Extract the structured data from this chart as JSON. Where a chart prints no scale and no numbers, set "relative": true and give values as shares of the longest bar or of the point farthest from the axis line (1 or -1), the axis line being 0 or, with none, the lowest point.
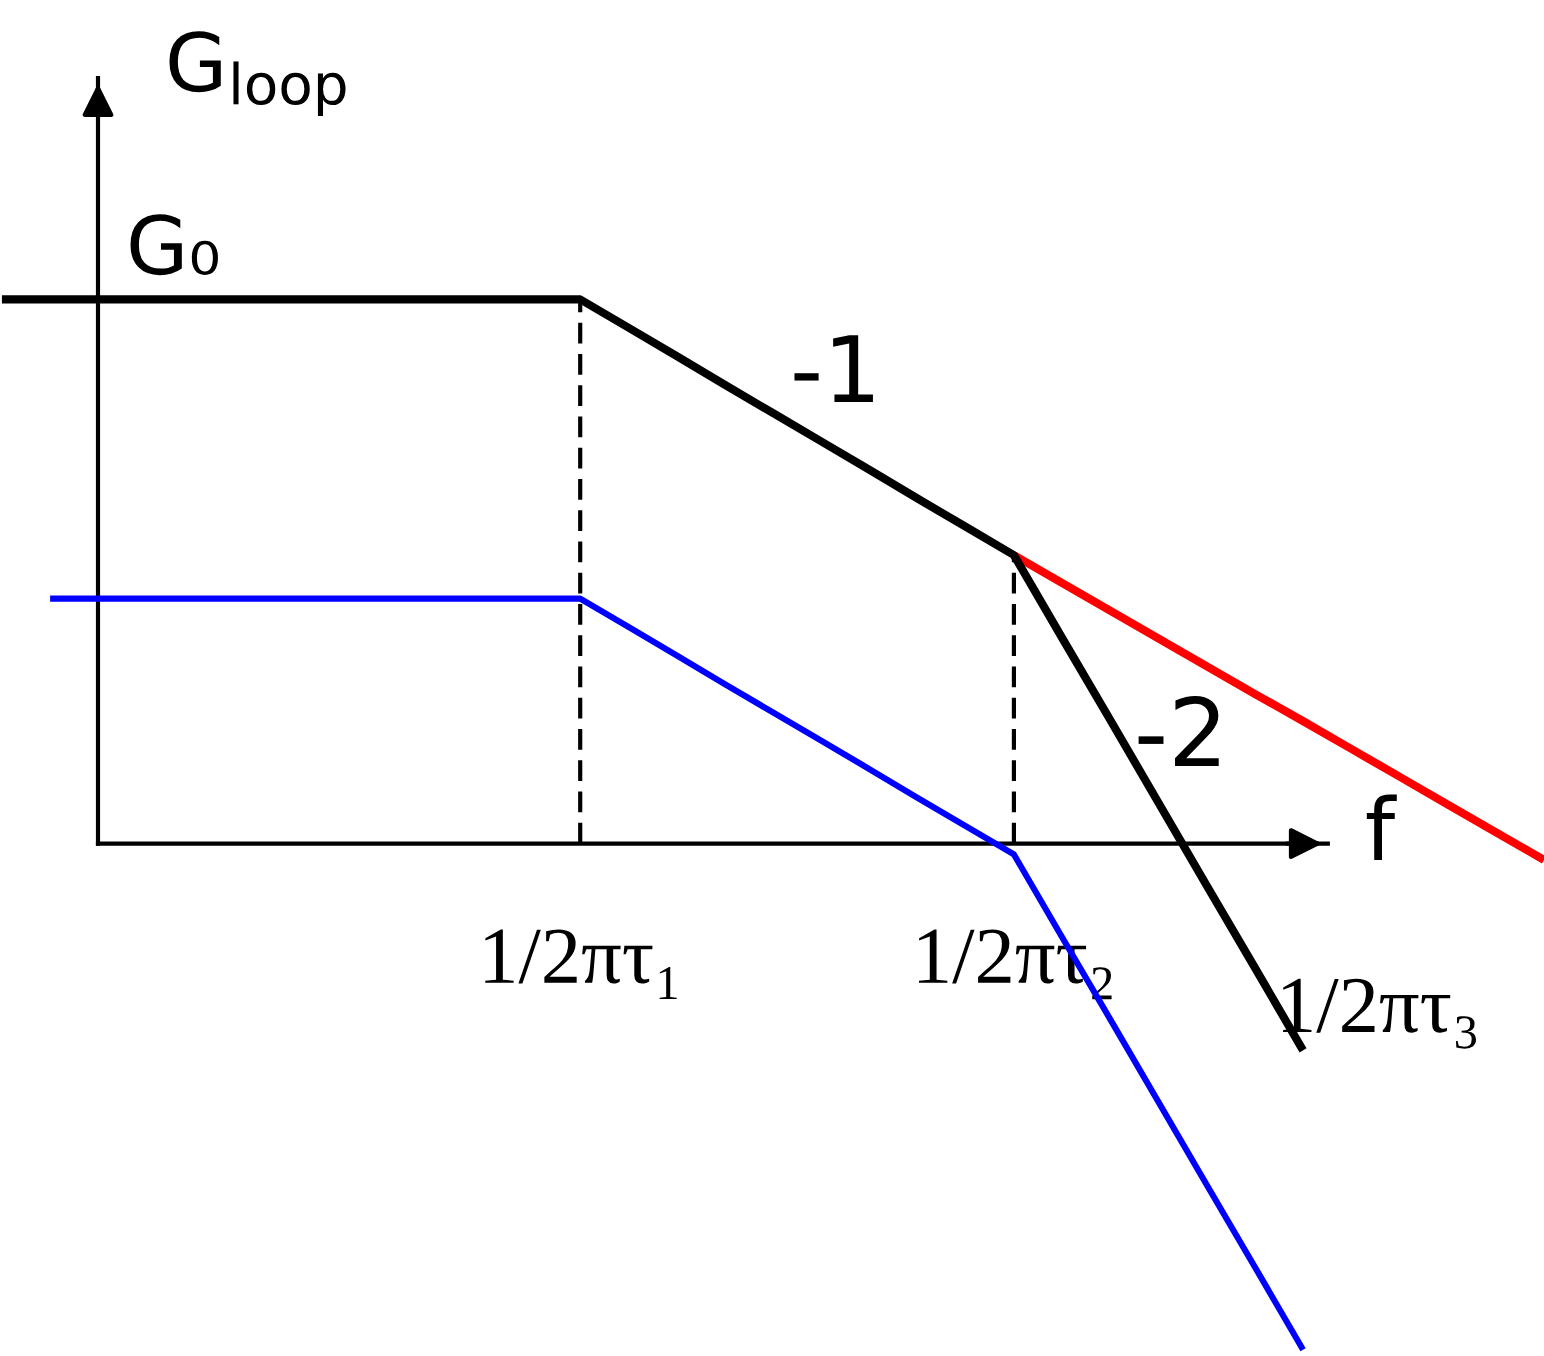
{
  "chart_data": {
    "type": "line",
    "relative": true,
    "xlabel": "f",
    "ylabel": "G$_{loop}$",
    "categories": [
      null,
      null,
      null,
      null,
      null,
      null,
      null,
      null,
      null,
      null,
      null,
      null,
      "1/2πτ₁",
      null,
      null,
      null,
      null,
      null,
      null,
      null,
      null,
      "1/2πτ₂",
      null,
      null,
      null,
      null,
      null,
      null,
      null,
      null,
      null,
      null,
      null
    ],
    "series": [
      {
        "color": "#ff0000",
        "values": [
          null,
          null,
          null,
          null,
          null,
          null,
          null,
          null,
          null,
          null,
          null,
          null,
          null,
          null,
          null,
          null,
          null,
          null,
          null,
          null,
          null,
          0.53,
          0.479,
          0.428,
          0.377,
          0.326,
          0.275,
          0.225,
          0.174,
          0.123,
          0.072,
          0.021,
          -0.03
        ]
      },
      {
        "color": "#000000",
        "values": [
          1,
          1,
          1,
          1,
          1,
          1,
          1,
          1,
          1,
          1,
          1,
          1,
          1,
          0.948,
          0.896,
          0.843,
          0.791,
          0.739,
          0.687,
          0.634,
          0.582,
          0.53,
          0.378,
          0.227,
          0.075,
          -0.077,
          -0.228,
          -0.38,
          null,
          null,
          null,
          null,
          null
        ]
      },
      {
        "color": "#0000ff",
        "values": [
          null,
          0.45,
          0.45,
          0.45,
          0.45,
          0.45,
          0.45,
          0.45,
          0.45,
          0.45,
          0.45,
          0.45,
          0.45,
          0.398,
          0.346,
          0.293,
          0.241,
          0.189,
          0.137,
          0.084,
          0.032,
          -0.02,
          -0.172,
          -0.323,
          -0.475,
          -0.627,
          -0.778,
          -0.93,
          null,
          null,
          null,
          null,
          null
        ]
      }
    ],
    "ref_lines": [
      {
        "axis": "x",
        "value": "1/2πτ₁",
        "color": "#000000",
        "line_style": "dashed"
      },
      {
        "axis": "x",
        "value": "1/2πτ₂",
        "color": "#000000",
        "line_style": "dashed"
      }
    ],
    "annotations": [
      "G₀",
      "-1",
      "-2",
      "1/2πτ₃"
    ]
  }
}
